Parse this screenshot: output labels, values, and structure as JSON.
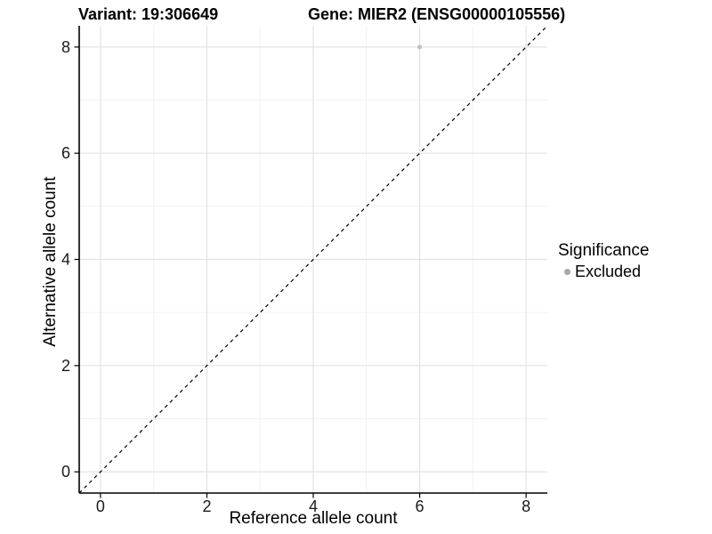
{
  "titles": {
    "variant": "Variant: 19:306649",
    "gene": "Gene: MIER2 (ENSG00000105556)"
  },
  "chart_data": {
    "type": "scatter",
    "xlabel": "Reference allele count",
    "ylabel": "Alternative allele count",
    "xlim": [
      -0.4,
      8.4
    ],
    "ylim": [
      -0.4,
      8.4
    ],
    "x_ticks": [
      0,
      2,
      4,
      6,
      8
    ],
    "y_ticks": [
      0,
      2,
      4,
      6,
      8
    ],
    "x_minor_ticks": [
      1,
      3,
      5,
      7
    ],
    "y_minor_ticks": [
      1,
      3,
      5,
      7
    ],
    "grid": true,
    "identity_line": {
      "style": "dashed",
      "from": [
        -0.4,
        -0.4
      ],
      "to": [
        8.4,
        8.4
      ]
    },
    "series": [
      {
        "name": "Excluded",
        "points": [
          {
            "x": 6,
            "y": 8
          }
        ]
      }
    ],
    "legend": {
      "title": "Significance",
      "position": "right",
      "entries": [
        {
          "label": "Excluded",
          "color": "#a8a8a8"
        }
      ]
    }
  },
  "colors": {
    "background": "#ffffff",
    "grid_major": "#e3e3e3",
    "grid_minor": "#f0f0f0",
    "axis_line": "#000000",
    "tick_mark": "#000000",
    "tick_label": "#1a1a1a",
    "identity_line": "#000000",
    "point_fill": "#c0c0c0",
    "legend_dot": "#a8a8a8"
  }
}
